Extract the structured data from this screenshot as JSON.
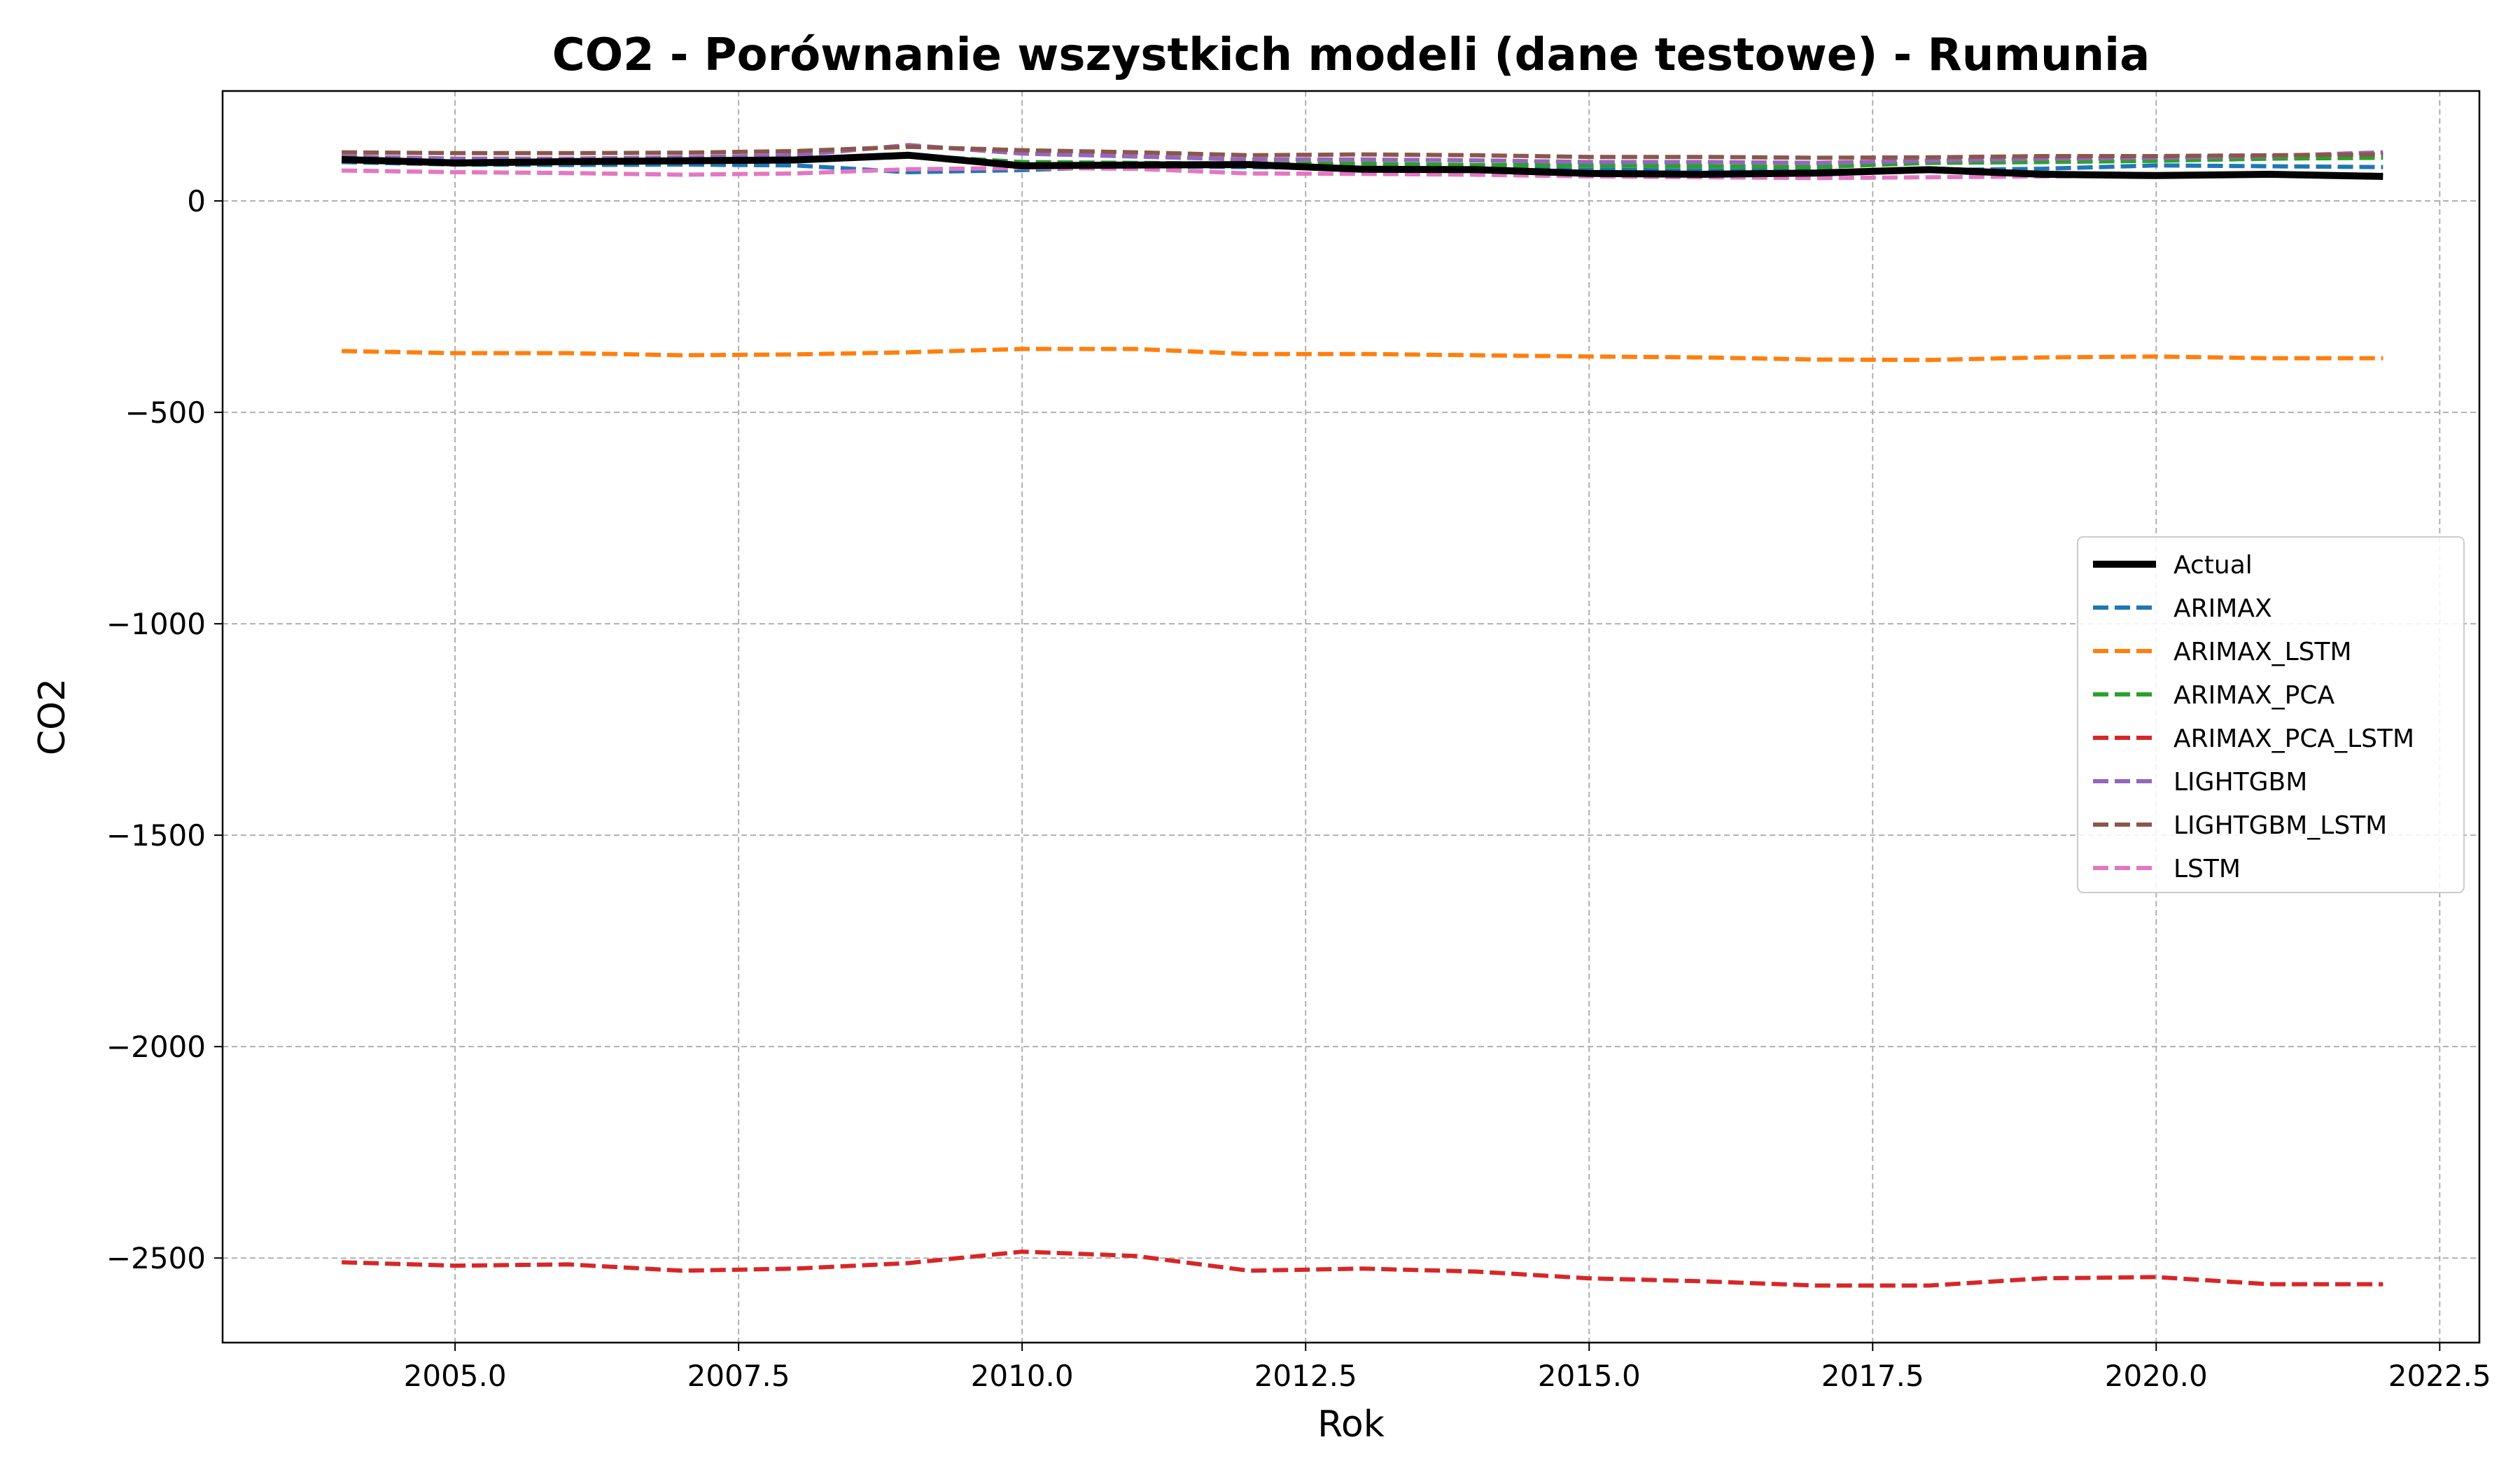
{
  "chart_data": {
    "type": "line",
    "title": "CO2 - Porównanie wszystkich modeli (dane testowe) - Rumunia",
    "xlabel": "Rok",
    "ylabel": "CO2",
    "xlim": [
      2002.95,
      2022.85
    ],
    "ylim": [
      -2700,
      260
    ],
    "xticks": [
      2005.0,
      2007.5,
      2010.0,
      2012.5,
      2015.0,
      2017.5,
      2020.0,
      2022.5
    ],
    "xtick_labels": [
      "2005.0",
      "2007.5",
      "2010.0",
      "2012.5",
      "2015.0",
      "2017.5",
      "2020.0",
      "2022.5"
    ],
    "yticks": [
      0,
      -500,
      -1000,
      -1500,
      -2000,
      -2500
    ],
    "ytick_labels": [
      "0",
      "−500",
      "−1000",
      "−1500",
      "−2000",
      "−2500"
    ],
    "grid": true,
    "legend_position": "center-right",
    "x": [
      2004,
      2005,
      2006,
      2007,
      2008,
      2009,
      2010,
      2011,
      2012,
      2013,
      2014,
      2015,
      2016,
      2017,
      2018,
      2019,
      2020,
      2021,
      2022
    ],
    "series": [
      {
        "name": "Actual",
        "color": "#000000",
        "style": "solid",
        "values": [
          98,
          90,
          93,
          95,
          97,
          108,
          83,
          85,
          86,
          75,
          74,
          65,
          63,
          66,
          74,
          63,
          60,
          63,
          58
        ]
      },
      {
        "name": "ARIMAX",
        "color": "#1f77b4",
        "style": "dashed",
        "values": [
          92,
          86,
          85,
          86,
          84,
          68,
          73,
          82,
          80,
          78,
          76,
          74,
          72,
          71,
          73,
          76,
          84,
          82,
          80
        ]
      },
      {
        "name": "ARIMAX_LSTM",
        "color": "#ff7f0e",
        "style": "dashed",
        "values": [
          -355,
          -360,
          -360,
          -365,
          -363,
          -358,
          -350,
          -350,
          -362,
          -362,
          -365,
          -368,
          -370,
          -375,
          -376,
          -370,
          -368,
          -372,
          -372
        ]
      },
      {
        "name": "ARIMAX_PCA",
        "color": "#2ca02c",
        "style": "dashed",
        "values": [
          95,
          92,
          92,
          94,
          96,
          108,
          92,
          90,
          88,
          88,
          85,
          84,
          82,
          80,
          90,
          92,
          95,
          100,
          102
        ]
      },
      {
        "name": "ARIMAX_PCA_LSTM",
        "color": "#d62728",
        "style": "dashed",
        "values": [
          -2510,
          -2518,
          -2515,
          -2530,
          -2525,
          -2512,
          -2485,
          -2495,
          -2530,
          -2525,
          -2532,
          -2548,
          -2555,
          -2565,
          -2565,
          -2548,
          -2545,
          -2562,
          -2562
        ]
      },
      {
        "name": "LIGHTGBM",
        "color": "#9467bd",
        "style": "dashed",
        "values": [
          105,
          100,
          100,
          103,
          108,
          132,
          112,
          105,
          98,
          98,
          96,
          92,
          92,
          90,
          95,
          100,
          102,
          106,
          115
        ]
      },
      {
        "name": "LIGHTGBM_LSTM",
        "color": "#8c564b",
        "style": "dashed",
        "values": [
          115,
          113,
          113,
          114,
          118,
          128,
          120,
          115,
          108,
          110,
          108,
          104,
          104,
          102,
          103,
          106,
          106,
          108,
          110
        ]
      },
      {
        "name": "LSTM",
        "color": "#e377c2",
        "style": "dashed",
        "values": [
          72,
          68,
          66,
          62,
          65,
          75,
          78,
          76,
          65,
          64,
          62,
          58,
          56,
          54,
          56,
          58,
          60,
          60,
          62
        ]
      }
    ]
  }
}
